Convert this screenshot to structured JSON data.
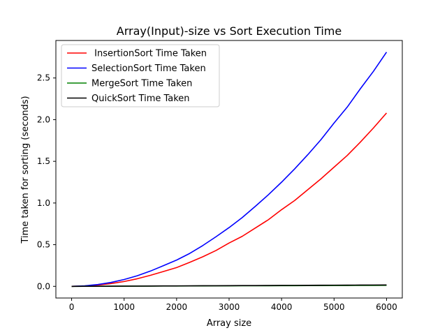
{
  "chart_data": {
    "type": "line",
    "title": "Array(Input)-size vs Sort Execution Time",
    "xlabel": "Array size",
    "ylabel": "Time taken for sorting (seconds)",
    "xlim": [
      -300,
      6300
    ],
    "ylim": [
      -0.14,
      2.95
    ],
    "xticks": [
      0,
      1000,
      2000,
      3000,
      4000,
      5000,
      6000
    ],
    "xtick_labels": [
      "0",
      "1000",
      "2000",
      "3000",
      "4000",
      "5000",
      "6000"
    ],
    "yticks": [
      0.0,
      0.5,
      1.0,
      1.5,
      2.0,
      2.5
    ],
    "ytick_labels": [
      "0.0",
      "0.5",
      "1.0",
      "1.5",
      "2.0",
      "2.5"
    ],
    "grid": false,
    "legend_position": "top-left",
    "x": [
      0,
      250,
      500,
      750,
      1000,
      1250,
      1500,
      1750,
      2000,
      2250,
      2500,
      2750,
      3000,
      3250,
      3500,
      3750,
      4000,
      4250,
      4500,
      4750,
      5000,
      5250,
      5500,
      5750,
      6000
    ],
    "series": [
      {
        "name": " InsertionSort Time Taken",
        "color": "#ff0000",
        "values": [
          0.0,
          0.004,
          0.015,
          0.033,
          0.058,
          0.091,
          0.132,
          0.178,
          0.225,
          0.288,
          0.355,
          0.43,
          0.52,
          0.6,
          0.7,
          0.8,
          0.92,
          1.03,
          1.16,
          1.29,
          1.43,
          1.57,
          1.73,
          1.9,
          2.08
        ]
      },
      {
        "name": "SelectionSort Time Taken",
        "color": "#0000ff",
        "values": [
          0.0,
          0.006,
          0.022,
          0.047,
          0.082,
          0.127,
          0.183,
          0.248,
          0.315,
          0.395,
          0.49,
          0.595,
          0.705,
          0.825,
          0.96,
          1.1,
          1.25,
          1.41,
          1.58,
          1.76,
          1.96,
          2.15,
          2.37,
          2.58,
          2.81
        ]
      },
      {
        "name": "MergeSort Time Taken",
        "color": "#008000",
        "values": [
          0.0,
          0.0005,
          0.001,
          0.0015,
          0.002,
          0.0025,
          0.003,
          0.0035,
          0.004,
          0.0045,
          0.005,
          0.0055,
          0.006,
          0.0065,
          0.007,
          0.0075,
          0.008,
          0.0085,
          0.009,
          0.0095,
          0.01,
          0.0105,
          0.011,
          0.0115,
          0.012
        ]
      },
      {
        "name": "QuickSort Time Taken",
        "color": "#000000",
        "values": [
          0.0,
          0.0006,
          0.0012,
          0.0019,
          0.0026,
          0.0033,
          0.004,
          0.0047,
          0.0054,
          0.0061,
          0.0068,
          0.0075,
          0.0082,
          0.0089,
          0.0096,
          0.0103,
          0.011,
          0.0117,
          0.0124,
          0.0131,
          0.0138,
          0.0145,
          0.0152,
          0.0159,
          0.0166
        ]
      }
    ]
  }
}
